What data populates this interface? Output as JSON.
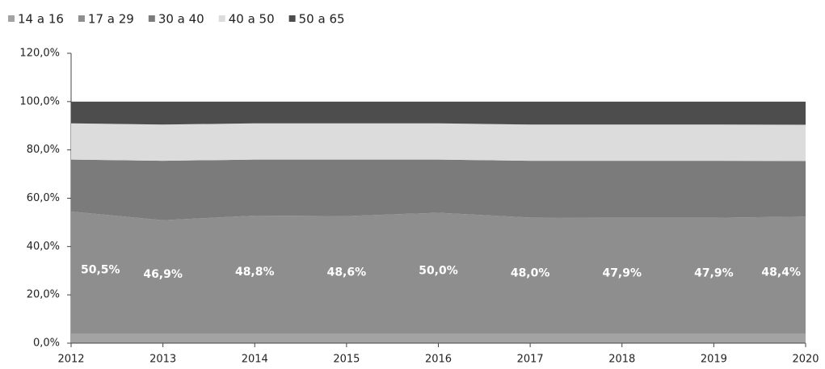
{
  "chart_data": {
    "type": "stacked_area",
    "categories": [
      "2012",
      "2013",
      "2014",
      "2015",
      "2016",
      "2017",
      "2018",
      "2019",
      "2020"
    ],
    "series": [
      {
        "name": "14 a 16",
        "color": "#a3a3a3",
        "values": [
          4,
          4,
          4,
          4,
          4,
          4,
          4,
          4,
          4
        ]
      },
      {
        "name": "17 a 29",
        "color": "#8e8e8e",
        "values": [
          50.5,
          46.9,
          48.8,
          48.6,
          50.0,
          48.0,
          47.9,
          47.9,
          48.4
        ],
        "value_labels": [
          "50,5%",
          "46,9%",
          "48,8%",
          "48,6%",
          "50,0%",
          "48,0%",
          "47,9%",
          "47,9%",
          "48,4%"
        ]
      },
      {
        "name": "30 a 40",
        "color": "#7b7b7b",
        "values": [
          21.5,
          24.6,
          23.2,
          23.4,
          22,
          23.5,
          23.6,
          23.6,
          23
        ]
      },
      {
        "name": "40 a 50",
        "color": "#dcdcdc",
        "values": [
          15,
          15,
          15,
          15,
          15,
          15,
          15,
          15,
          15
        ]
      },
      {
        "name": "50 a 65",
        "color": "#4d4d4d",
        "values": [
          9,
          9.5,
          9,
          9,
          9,
          9.5,
          9.5,
          9.5,
          9.6
        ]
      }
    ],
    "ylim": [
      0,
      120
    ],
    "yticks": [
      {
        "value": 0,
        "label": "0,0%"
      },
      {
        "value": 20,
        "label": "20,0%"
      },
      {
        "value": 40,
        "label": "40,0%"
      },
      {
        "value": 60,
        "label": "60,0%"
      },
      {
        "value": 80,
        "label": "80,0%"
      },
      {
        "value": 100,
        "label": "100,0%"
      },
      {
        "value": 120,
        "label": "120,0%"
      }
    ],
    "legend": "top-left"
  }
}
